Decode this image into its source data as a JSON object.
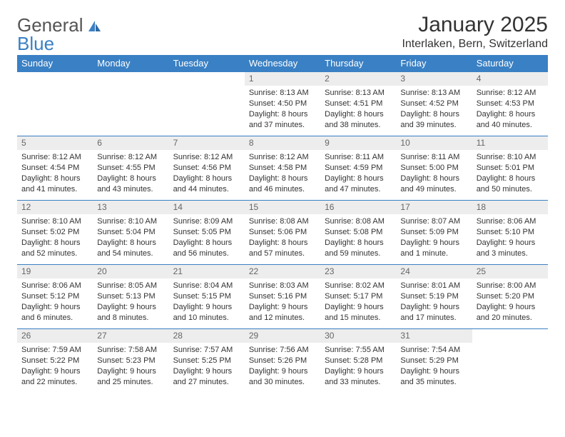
{
  "logo": {
    "text1": "General",
    "text2": "Blue"
  },
  "title": "January 2025",
  "location": "Interlaken, Bern, Switzerland",
  "colors": {
    "header_bg": "#3a80c4",
    "header_text": "#ffffff",
    "daynum_bg": "#ededed",
    "daynum_text": "#666666",
    "border": "#3a80c4",
    "body_text": "#333333",
    "page_bg": "#ffffff"
  },
  "daysOfWeek": [
    "Sunday",
    "Monday",
    "Tuesday",
    "Wednesday",
    "Thursday",
    "Friday",
    "Saturday"
  ],
  "weeks": [
    [
      null,
      null,
      null,
      {
        "n": "1",
        "sr": "8:13 AM",
        "ss": "4:50 PM",
        "dl": "8 hours and 37 minutes."
      },
      {
        "n": "2",
        "sr": "8:13 AM",
        "ss": "4:51 PM",
        "dl": "8 hours and 38 minutes."
      },
      {
        "n": "3",
        "sr": "8:13 AM",
        "ss": "4:52 PM",
        "dl": "8 hours and 39 minutes."
      },
      {
        "n": "4",
        "sr": "8:12 AM",
        "ss": "4:53 PM",
        "dl": "8 hours and 40 minutes."
      }
    ],
    [
      {
        "n": "5",
        "sr": "8:12 AM",
        "ss": "4:54 PM",
        "dl": "8 hours and 41 minutes."
      },
      {
        "n": "6",
        "sr": "8:12 AM",
        "ss": "4:55 PM",
        "dl": "8 hours and 43 minutes."
      },
      {
        "n": "7",
        "sr": "8:12 AM",
        "ss": "4:56 PM",
        "dl": "8 hours and 44 minutes."
      },
      {
        "n": "8",
        "sr": "8:12 AM",
        "ss": "4:58 PM",
        "dl": "8 hours and 46 minutes."
      },
      {
        "n": "9",
        "sr": "8:11 AM",
        "ss": "4:59 PM",
        "dl": "8 hours and 47 minutes."
      },
      {
        "n": "10",
        "sr": "8:11 AM",
        "ss": "5:00 PM",
        "dl": "8 hours and 49 minutes."
      },
      {
        "n": "11",
        "sr": "8:10 AM",
        "ss": "5:01 PM",
        "dl": "8 hours and 50 minutes."
      }
    ],
    [
      {
        "n": "12",
        "sr": "8:10 AM",
        "ss": "5:02 PM",
        "dl": "8 hours and 52 minutes."
      },
      {
        "n": "13",
        "sr": "8:10 AM",
        "ss": "5:04 PM",
        "dl": "8 hours and 54 minutes."
      },
      {
        "n": "14",
        "sr": "8:09 AM",
        "ss": "5:05 PM",
        "dl": "8 hours and 56 minutes."
      },
      {
        "n": "15",
        "sr": "8:08 AM",
        "ss": "5:06 PM",
        "dl": "8 hours and 57 minutes."
      },
      {
        "n": "16",
        "sr": "8:08 AM",
        "ss": "5:08 PM",
        "dl": "8 hours and 59 minutes."
      },
      {
        "n": "17",
        "sr": "8:07 AM",
        "ss": "5:09 PM",
        "dl": "9 hours and 1 minute."
      },
      {
        "n": "18",
        "sr": "8:06 AM",
        "ss": "5:10 PM",
        "dl": "9 hours and 3 minutes."
      }
    ],
    [
      {
        "n": "19",
        "sr": "8:06 AM",
        "ss": "5:12 PM",
        "dl": "9 hours and 6 minutes."
      },
      {
        "n": "20",
        "sr": "8:05 AM",
        "ss": "5:13 PM",
        "dl": "9 hours and 8 minutes."
      },
      {
        "n": "21",
        "sr": "8:04 AM",
        "ss": "5:15 PM",
        "dl": "9 hours and 10 minutes."
      },
      {
        "n": "22",
        "sr": "8:03 AM",
        "ss": "5:16 PM",
        "dl": "9 hours and 12 minutes."
      },
      {
        "n": "23",
        "sr": "8:02 AM",
        "ss": "5:17 PM",
        "dl": "9 hours and 15 minutes."
      },
      {
        "n": "24",
        "sr": "8:01 AM",
        "ss": "5:19 PM",
        "dl": "9 hours and 17 minutes."
      },
      {
        "n": "25",
        "sr": "8:00 AM",
        "ss": "5:20 PM",
        "dl": "9 hours and 20 minutes."
      }
    ],
    [
      {
        "n": "26",
        "sr": "7:59 AM",
        "ss": "5:22 PM",
        "dl": "9 hours and 22 minutes."
      },
      {
        "n": "27",
        "sr": "7:58 AM",
        "ss": "5:23 PM",
        "dl": "9 hours and 25 minutes."
      },
      {
        "n": "28",
        "sr": "7:57 AM",
        "ss": "5:25 PM",
        "dl": "9 hours and 27 minutes."
      },
      {
        "n": "29",
        "sr": "7:56 AM",
        "ss": "5:26 PM",
        "dl": "9 hours and 30 minutes."
      },
      {
        "n": "30",
        "sr": "7:55 AM",
        "ss": "5:28 PM",
        "dl": "9 hours and 33 minutes."
      },
      {
        "n": "31",
        "sr": "7:54 AM",
        "ss": "5:29 PM",
        "dl": "9 hours and 35 minutes."
      },
      null
    ]
  ],
  "labels": {
    "sunrise": "Sunrise:",
    "sunset": "Sunset:",
    "daylight": "Daylight:"
  }
}
